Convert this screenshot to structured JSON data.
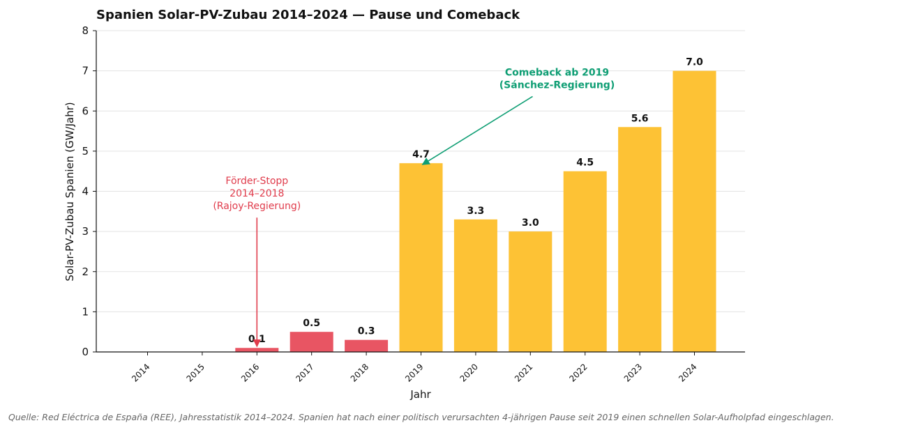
{
  "chart_data": {
    "type": "bar",
    "title": "Spanien Solar-PV-Zubau 2014–2024 — Pause und Comeback",
    "xlabel": "Jahr",
    "ylabel": "Solar-PV-Zubau Spanien (GW/Jahr)",
    "ylim": [
      0,
      8
    ],
    "yticks": [
      "0",
      "1",
      "2",
      "3",
      "4",
      "5",
      "6",
      "7",
      "8"
    ],
    "grid": "horizontal",
    "categories": [
      "2014",
      "2015",
      "2016",
      "2017",
      "2018",
      "2019",
      "2020",
      "2021",
      "2022",
      "2023",
      "2024"
    ],
    "values": [
      0,
      0,
      0.1,
      0.5,
      0.3,
      4.7,
      3.3,
      3.0,
      4.5,
      5.6,
      7.0
    ],
    "value_labels": [
      "",
      "",
      "0.1",
      "0.5",
      "0.3",
      "4.7",
      "3.3",
      "3.0",
      "4.5",
      "5.6",
      "7.0"
    ],
    "colors": {
      "pause": "#e85563",
      "comeback": "#fdc235",
      "annotation_pause": "#e03b4b",
      "annotation_comeback": "#0f9e74"
    },
    "bar_groups": [
      "pause",
      "pause",
      "pause",
      "pause",
      "pause",
      "comeback",
      "comeback",
      "comeback",
      "comeback",
      "comeback",
      "comeback"
    ],
    "annotations": [
      {
        "lines": [
          "Förder-Stopp",
          "2014–2018",
          "(Rajoy-Regierung)"
        ],
        "target_category": "2016",
        "target_value": 0.1,
        "text_value": 3.45,
        "style": "pause"
      },
      {
        "lines": [
          "Comeback ab 2019",
          "(Sánchez-Regierung)"
        ],
        "target_category": "2019",
        "target_value": 4.7,
        "text_value": 6.5,
        "style": "comeback"
      }
    ]
  },
  "source_note": "Quelle: Red Eléctrica de España (REE), Jahresstatistik 2014–2024. Spanien hat nach einer politisch verursachten 4-jährigen Pause seit 2019 einen schnellen Solar-Aufholpfad eingeschlagen."
}
